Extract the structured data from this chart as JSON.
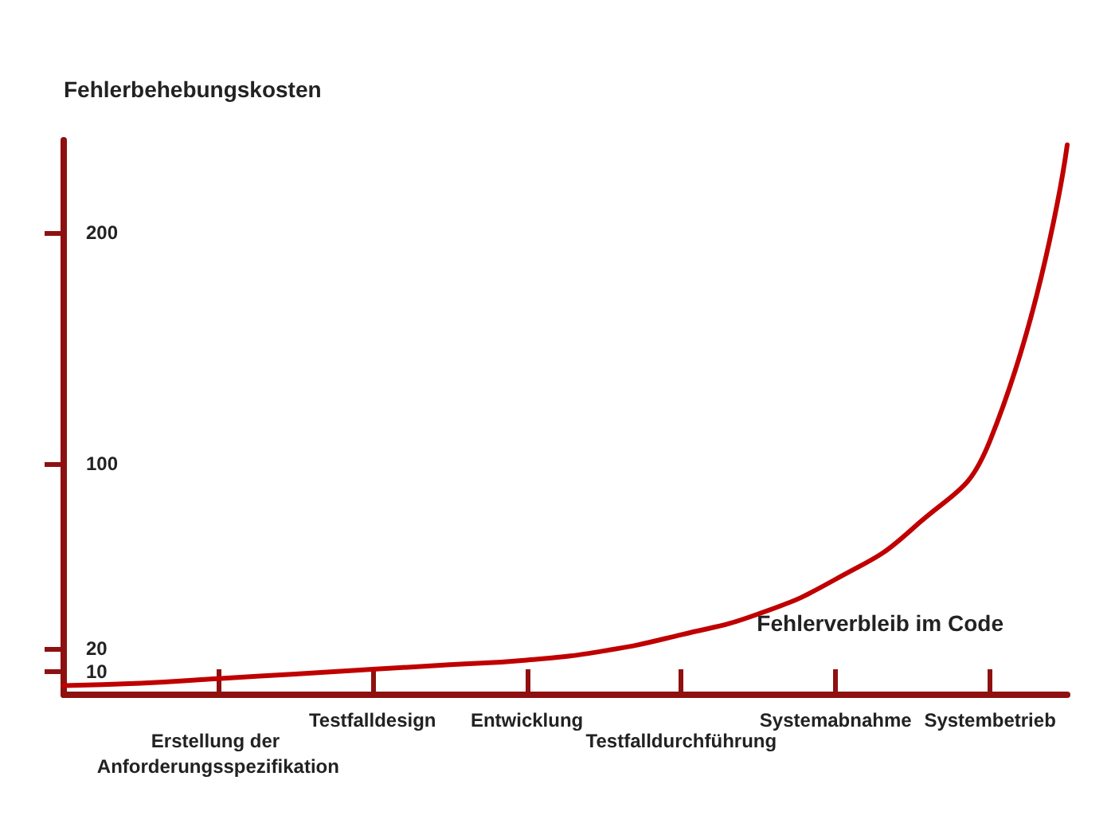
{
  "chart_data": {
    "type": "line",
    "xlabel": "Fehlerverbleib im Code",
    "ylabel": "Fehlerbehebungskosten",
    "categories": [
      null,
      null,
      "Erstellung der Anforderungsspezifikation",
      null,
      "Testfalldesign",
      null,
      "Entwicklung",
      null,
      "Testfalldurchführung",
      null,
      "Systemabnahme",
      null,
      "Systembetrieb",
      null
    ],
    "series": [
      {
        "color": "#c00000",
        "values": [
          4,
          5,
          7,
          9,
          11,
          13,
          15,
          19,
          26,
          35,
          50,
          72,
          110,
          238
        ]
      }
    ],
    "ylim": [
      0,
      240
    ],
    "yticks": [
      10,
      20,
      100,
      200
    ],
    "grid": false,
    "marker": "none",
    "line_style": "solid"
  }
}
